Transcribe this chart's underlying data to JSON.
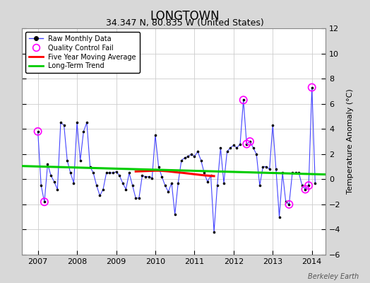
{
  "title": "LONGTOWN",
  "subtitle": "34.347 N, 80.835 W (United States)",
  "ylabel": "Temperature Anomaly (°C)",
  "credit": "Berkeley Earth",
  "ylim": [
    -6,
    12
  ],
  "yticks": [
    -6,
    -4,
    -2,
    0,
    2,
    4,
    6,
    8,
    10,
    12
  ],
  "xlim": [
    2006.6,
    2014.35
  ],
  "xticks": [
    2007,
    2008,
    2009,
    2010,
    2011,
    2012,
    2013,
    2014
  ],
  "bg_color": "#d8d8d8",
  "plot_bg_color": "#ffffff",
  "raw_color": "#4444ff",
  "raw_marker_color": "#000000",
  "qc_color": "#ff00ff",
  "ma_color": "#ff0000",
  "trend_color": "#00cc00",
  "raw_data": [
    [
      2007.0,
      3.8
    ],
    [
      2007.083,
      -0.5
    ],
    [
      2007.167,
      -1.8
    ],
    [
      2007.25,
      1.2
    ],
    [
      2007.333,
      0.3
    ],
    [
      2007.417,
      -0.2
    ],
    [
      2007.5,
      -0.8
    ],
    [
      2007.583,
      4.5
    ],
    [
      2007.667,
      4.3
    ],
    [
      2007.75,
      1.5
    ],
    [
      2007.833,
      0.5
    ],
    [
      2007.917,
      -0.3
    ],
    [
      2008.0,
      4.5
    ],
    [
      2008.083,
      1.5
    ],
    [
      2008.167,
      3.8
    ],
    [
      2008.25,
      4.5
    ],
    [
      2008.333,
      1.0
    ],
    [
      2008.417,
      0.5
    ],
    [
      2008.5,
      -0.5
    ],
    [
      2008.583,
      -1.3
    ],
    [
      2008.667,
      -0.8
    ],
    [
      2008.75,
      0.5
    ],
    [
      2008.833,
      0.5
    ],
    [
      2008.917,
      0.5
    ],
    [
      2009.0,
      0.6
    ],
    [
      2009.083,
      0.3
    ],
    [
      2009.167,
      -0.3
    ],
    [
      2009.25,
      -0.8
    ],
    [
      2009.333,
      0.5
    ],
    [
      2009.417,
      -0.5
    ],
    [
      2009.5,
      -1.5
    ],
    [
      2009.583,
      -1.5
    ],
    [
      2009.667,
      0.3
    ],
    [
      2009.75,
      0.2
    ],
    [
      2009.833,
      0.2
    ],
    [
      2009.917,
      0.1
    ],
    [
      2010.0,
      3.5
    ],
    [
      2010.083,
      1.0
    ],
    [
      2010.167,
      0.2
    ],
    [
      2010.25,
      -0.5
    ],
    [
      2010.333,
      -1.0
    ],
    [
      2010.417,
      -0.3
    ],
    [
      2010.5,
      -2.8
    ],
    [
      2010.583,
      -0.3
    ],
    [
      2010.667,
      1.5
    ],
    [
      2010.75,
      1.7
    ],
    [
      2010.833,
      1.8
    ],
    [
      2010.917,
      2.0
    ],
    [
      2011.0,
      1.8
    ],
    [
      2011.083,
      2.2
    ],
    [
      2011.167,
      1.5
    ],
    [
      2011.25,
      0.5
    ],
    [
      2011.333,
      -0.2
    ],
    [
      2011.417,
      0.3
    ],
    [
      2011.5,
      -4.2
    ],
    [
      2011.583,
      -0.5
    ],
    [
      2011.667,
      2.5
    ],
    [
      2011.75,
      -0.3
    ],
    [
      2011.833,
      2.2
    ],
    [
      2011.917,
      2.5
    ],
    [
      2012.0,
      2.7
    ],
    [
      2012.083,
      2.5
    ],
    [
      2012.167,
      2.8
    ],
    [
      2012.25,
      6.3
    ],
    [
      2012.333,
      2.8
    ],
    [
      2012.417,
      3.0
    ],
    [
      2012.5,
      2.5
    ],
    [
      2012.583,
      2.0
    ],
    [
      2012.667,
      -0.5
    ],
    [
      2012.75,
      1.0
    ],
    [
      2012.833,
      1.0
    ],
    [
      2012.917,
      0.8
    ],
    [
      2013.0,
      4.3
    ],
    [
      2013.083,
      0.8
    ],
    [
      2013.167,
      -3.0
    ],
    [
      2013.25,
      0.5
    ],
    [
      2013.333,
      -1.8
    ],
    [
      2013.417,
      -2.0
    ],
    [
      2013.5,
      0.5
    ],
    [
      2013.583,
      0.5
    ],
    [
      2013.667,
      0.5
    ],
    [
      2013.75,
      -0.5
    ],
    [
      2013.833,
      -0.8
    ],
    [
      2013.917,
      -0.5
    ],
    [
      2014.0,
      7.3
    ],
    [
      2014.083,
      -0.3
    ]
  ],
  "qc_fail": [
    [
      2007.0,
      3.8
    ],
    [
      2007.167,
      -1.8
    ],
    [
      2012.25,
      6.3
    ],
    [
      2012.333,
      2.8
    ],
    [
      2012.417,
      3.0
    ],
    [
      2013.417,
      -2.0
    ],
    [
      2013.833,
      -0.8
    ],
    [
      2013.917,
      -0.5
    ],
    [
      2014.0,
      7.3
    ]
  ],
  "moving_avg": [
    [
      2009.5,
      0.62
    ],
    [
      2009.583,
      0.63
    ],
    [
      2009.667,
      0.64
    ],
    [
      2009.75,
      0.65
    ],
    [
      2009.833,
      0.66
    ],
    [
      2009.917,
      0.67
    ],
    [
      2010.0,
      0.68
    ],
    [
      2010.083,
      0.68
    ],
    [
      2010.167,
      0.67
    ],
    [
      2010.25,
      0.65
    ],
    [
      2010.333,
      0.63
    ],
    [
      2010.417,
      0.6
    ],
    [
      2010.5,
      0.57
    ],
    [
      2010.583,
      0.54
    ],
    [
      2010.667,
      0.52
    ],
    [
      2010.75,
      0.49
    ],
    [
      2010.833,
      0.46
    ],
    [
      2010.917,
      0.43
    ],
    [
      2011.0,
      0.4
    ],
    [
      2011.083,
      0.37
    ],
    [
      2011.167,
      0.34
    ],
    [
      2011.25,
      0.31
    ],
    [
      2011.333,
      0.29
    ],
    [
      2011.417,
      0.27
    ],
    [
      2011.5,
      0.25
    ]
  ],
  "trend_x": [
    2006.6,
    2014.35
  ],
  "trend_y": [
    1.05,
    0.38
  ]
}
